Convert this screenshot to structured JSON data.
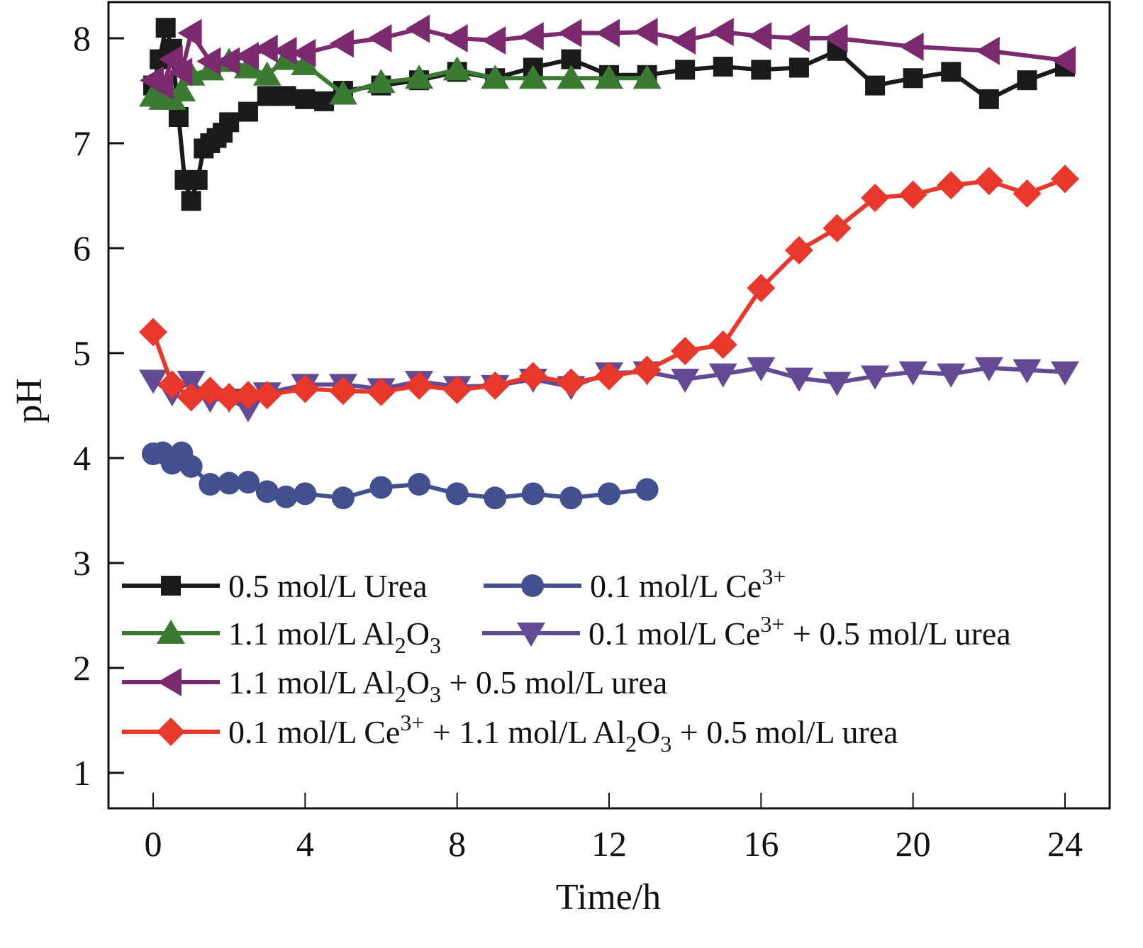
{
  "chart_data": {
    "type": "line",
    "title": "",
    "xlabel": "Time/h",
    "ylabel": "pH",
    "xlim": [
      -0.6,
      25.4
    ],
    "ylim": [
      0.7,
      8.35
    ],
    "xticks": [
      0,
      4,
      8,
      12,
      16,
      20,
      24
    ],
    "yticks": [
      1,
      2,
      3,
      4,
      5,
      6,
      7,
      8
    ],
    "xtick_labels": [
      "0",
      "4",
      "8",
      "12",
      "16",
      "20",
      "24"
    ],
    "ytick_labels": [
      "1",
      "2",
      "3",
      "4",
      "5",
      "6",
      "7",
      "8"
    ],
    "grid": false,
    "legend_position": "bottom-left",
    "series": [
      {
        "name": "0.5 mol/L Urea",
        "legend_parts": [
          {
            "t": "0.5 mol/L Urea"
          }
        ],
        "color": "#1a1a1a",
        "marker": "square",
        "x": [
          0,
          0.17,
          0.33,
          0.5,
          0.67,
          0.83,
          1.0,
          1.17,
          1.33,
          1.5,
          1.67,
          1.83,
          2.0,
          2.5,
          3,
          3.5,
          4,
          4.5,
          5,
          6,
          7,
          8,
          9,
          10,
          11,
          12,
          13,
          14,
          15,
          16,
          17,
          18,
          19,
          20,
          21,
          22,
          23,
          24
        ],
        "y": [
          7.55,
          7.8,
          8.1,
          7.9,
          7.25,
          6.65,
          6.45,
          6.65,
          6.95,
          7.0,
          7.05,
          7.1,
          7.2,
          7.3,
          7.45,
          7.45,
          7.42,
          7.4,
          7.5,
          7.55,
          7.6,
          7.68,
          7.62,
          7.72,
          7.8,
          7.65,
          7.65,
          7.7,
          7.73,
          7.7,
          7.72,
          7.88,
          7.55,
          7.62,
          7.68,
          7.42,
          7.6,
          7.73
        ]
      },
      {
        "name": "0.1 mol/L Ce3+",
        "legend_parts": [
          {
            "t": "0.1 mol/L Ce"
          },
          {
            "t": "3+",
            "sup": true
          }
        ],
        "color": "#43508f",
        "marker": "circle",
        "x": [
          0,
          0.25,
          0.5,
          0.75,
          1.0,
          1.5,
          2.0,
          2.5,
          3,
          3.5,
          4,
          5,
          6,
          7,
          8,
          9,
          10,
          11,
          12,
          13
        ],
        "y": [
          4.04,
          4.05,
          3.95,
          4.05,
          3.92,
          3.75,
          3.76,
          3.77,
          3.68,
          3.63,
          3.66,
          3.62,
          3.72,
          3.75,
          3.66,
          3.62,
          3.66,
          3.62,
          3.66,
          3.7
        ]
      },
      {
        "name": "1.1 mol/L Al2O3",
        "legend_parts": [
          {
            "t": "1.1 mol/L Al"
          },
          {
            "t": "2",
            "sub": true
          },
          {
            "t": "O"
          },
          {
            "t": "3",
            "sub": true
          }
        ],
        "color": "#3b7a33",
        "marker": "triangle-up",
        "x": [
          0,
          0.25,
          0.5,
          0.75,
          1.0,
          1.5,
          2.0,
          2.5,
          3,
          3.5,
          4,
          5,
          6,
          7,
          8,
          9,
          10,
          11,
          12,
          13
        ],
        "y": [
          7.45,
          7.42,
          7.42,
          7.5,
          7.65,
          7.7,
          7.78,
          7.72,
          7.65,
          7.8,
          7.75,
          7.47,
          7.58,
          7.62,
          7.7,
          7.62,
          7.62,
          7.62,
          7.62,
          7.62
        ]
      },
      {
        "name": "0.1 mol/L Ce3+ + 0.5 mol/L urea",
        "legend_parts": [
          {
            "t": "0.1 mol/L Ce"
          },
          {
            "t": "3+",
            "sup": true
          },
          {
            "t": " + 0.5 mol/L urea"
          }
        ],
        "color": "#644a94",
        "marker": "triangle-down",
        "x": [
          0,
          0.5,
          1,
          1.5,
          2,
          2.5,
          3,
          4,
          5,
          6,
          7,
          8,
          9,
          10,
          11,
          12,
          13,
          14,
          15,
          16,
          17,
          18,
          19,
          20,
          21,
          22,
          23,
          24
        ],
        "y": [
          4.74,
          4.62,
          4.73,
          4.56,
          4.56,
          4.47,
          4.62,
          4.7,
          4.7,
          4.66,
          4.73,
          4.68,
          4.69,
          4.75,
          4.68,
          4.81,
          4.82,
          4.75,
          4.8,
          4.86,
          4.76,
          4.72,
          4.78,
          4.82,
          4.8,
          4.86,
          4.84,
          4.82
        ]
      },
      {
        "name": "1.1 mol/L Al2O3 + 0.5 mol/L urea",
        "legend_parts": [
          {
            "t": "1.1 mol/L Al"
          },
          {
            "t": "2",
            "sub": true
          },
          {
            "t": "O"
          },
          {
            "t": "3",
            "sub": true
          },
          {
            "t": " + 0.5 mol/L urea"
          }
        ],
        "color": "#7b2a6f",
        "marker": "triangle-left",
        "x": [
          0,
          0.25,
          0.5,
          0.75,
          1.0,
          1.5,
          2.0,
          2.5,
          3,
          3.5,
          4,
          5,
          6,
          7,
          8,
          9,
          10,
          11,
          12,
          13,
          14,
          15,
          16,
          17,
          18,
          20,
          22,
          24
        ],
        "y": [
          7.6,
          7.55,
          7.8,
          7.68,
          8.05,
          7.78,
          7.78,
          7.83,
          7.9,
          7.88,
          7.86,
          7.95,
          8.0,
          8.09,
          8.0,
          7.98,
          8.02,
          8.05,
          8.05,
          8.06,
          7.98,
          8.06,
          8.02,
          8.0,
          8.0,
          7.92,
          7.88,
          7.79
        ]
      },
      {
        "name": "0.1 mol/L Ce3+ + 1.1 mol/L Al2O3 + 0.5 mol/L urea",
        "legend_parts": [
          {
            "t": "0.1 mol/L Ce"
          },
          {
            "t": "3+",
            "sup": true
          },
          {
            "t": " + 1.1 mol/L Al"
          },
          {
            "t": "2",
            "sub": true
          },
          {
            "t": "O"
          },
          {
            "t": "3",
            "sub": true
          },
          {
            "t": "  + 0.5 mol/L urea"
          }
        ],
        "color": "#e8382c",
        "marker": "diamond",
        "x": [
          0,
          0.5,
          1,
          1.5,
          2,
          2.5,
          3,
          4,
          5,
          6,
          7,
          8,
          9,
          10,
          11,
          12,
          13,
          14,
          15,
          16,
          17,
          18,
          19,
          20,
          21,
          22,
          23,
          24
        ],
        "y": [
          5.2,
          4.7,
          4.58,
          4.64,
          4.58,
          4.6,
          4.6,
          4.66,
          4.64,
          4.63,
          4.69,
          4.65,
          4.69,
          4.78,
          4.72,
          4.78,
          4.84,
          5.02,
          5.08,
          5.62,
          5.98,
          6.19,
          6.48,
          6.51,
          6.6,
          6.64,
          6.52,
          6.66
        ]
      }
    ]
  }
}
